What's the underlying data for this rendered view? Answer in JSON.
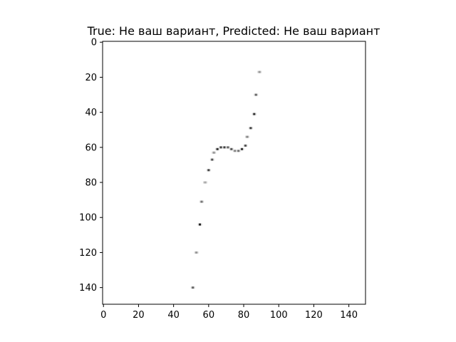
{
  "chart_data": {
    "type": "scatter",
    "title": "True: Не ваш вариант, Predicted: Не ваш вариант",
    "xlim": [
      -0.5,
      149.5
    ],
    "ylim": [
      149.5,
      -0.5
    ],
    "y_inverted": true,
    "grid": false,
    "xticks": [
      0,
      20,
      40,
      60,
      80,
      100,
      120,
      140
    ],
    "yticks": [
      0,
      20,
      40,
      60,
      80,
      100,
      120,
      140
    ],
    "xticklabels": [
      "0",
      "20",
      "40",
      "60",
      "80",
      "100",
      "120",
      "140"
    ],
    "yticklabels": [
      "0",
      "20",
      "40",
      "60",
      "80",
      "100",
      "120",
      "140"
    ],
    "points": [
      {
        "x": 89,
        "y": 17,
        "shade": "#999999"
      },
      {
        "x": 87,
        "y": 30,
        "shade": "#666666"
      },
      {
        "x": 86,
        "y": 41,
        "shade": "#333333"
      },
      {
        "x": 84,
        "y": 49,
        "shade": "#444444"
      },
      {
        "x": 82,
        "y": 54,
        "shade": "#888888"
      },
      {
        "x": 81,
        "y": 59,
        "shade": "#555555"
      },
      {
        "x": 79,
        "y": 61,
        "shade": "#333333"
      },
      {
        "x": 77,
        "y": 62,
        "shade": "#777777"
      },
      {
        "x": 75,
        "y": 62,
        "shade": "#888888"
      },
      {
        "x": 73,
        "y": 61,
        "shade": "#555555"
      },
      {
        "x": 71,
        "y": 60,
        "shade": "#666666"
      },
      {
        "x": 69,
        "y": 60,
        "shade": "#444444"
      },
      {
        "x": 67,
        "y": 60,
        "shade": "#444444"
      },
      {
        "x": 65,
        "y": 61,
        "shade": "#333333"
      },
      {
        "x": 63,
        "y": 63,
        "shade": "#999999"
      },
      {
        "x": 62,
        "y": 67,
        "shade": "#555555"
      },
      {
        "x": 60,
        "y": 73,
        "shade": "#444444"
      },
      {
        "x": 58,
        "y": 80,
        "shade": "#aaaaaa"
      },
      {
        "x": 56,
        "y": 91,
        "shade": "#777777"
      },
      {
        "x": 55,
        "y": 104,
        "shade": "#222222"
      },
      {
        "x": 53,
        "y": 120,
        "shade": "#999999"
      },
      {
        "x": 51,
        "y": 140,
        "shade": "#666666"
      }
    ]
  }
}
